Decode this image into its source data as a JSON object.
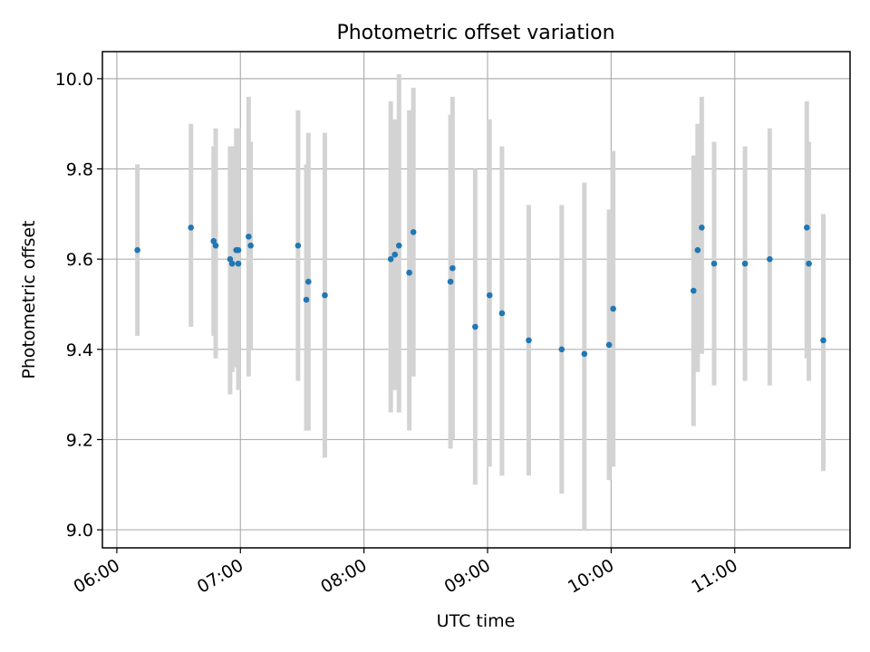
{
  "chart_data": {
    "type": "scatter",
    "title": "Photometric offset variation",
    "xlabel": "UTC time",
    "ylabel": "Photometric offset",
    "x_axis_type": "time",
    "xlim": [
      "05:53",
      "11:56"
    ],
    "ylim": [
      8.96,
      10.06
    ],
    "x_ticks": [
      "06:00",
      "07:00",
      "08:00",
      "09:00",
      "10:00",
      "11:00"
    ],
    "y_ticks": [
      9.0,
      9.2,
      9.4,
      9.6,
      9.8,
      10.0
    ],
    "y_tick_labels": [
      "9.0",
      "9.2",
      "9.4",
      "9.6",
      "9.8",
      "10.0"
    ],
    "grid": true,
    "legend": "none",
    "point_color": "#1f77b4",
    "errorbar_color": "#d3d3d3",
    "points": [
      {
        "x": "06:10",
        "y": 9.62,
        "ylow": 9.43,
        "yhigh": 9.81
      },
      {
        "x": "06:36",
        "y": 9.67,
        "ylow": 9.45,
        "yhigh": 9.9
      },
      {
        "x": "06:47",
        "y": 9.64,
        "ylow": 9.43,
        "yhigh": 9.85
      },
      {
        "x": "06:48",
        "y": 9.63,
        "ylow": 9.38,
        "yhigh": 9.89
      },
      {
        "x": "06:55",
        "y": 9.6,
        "ylow": 9.3,
        "yhigh": 9.85
      },
      {
        "x": "06:56",
        "y": 9.59,
        "ylow": 9.35,
        "yhigh": 9.85
      },
      {
        "x": "06:58",
        "y": 9.62,
        "ylow": 9.36,
        "yhigh": 9.89
      },
      {
        "x": "06:59",
        "y": 9.62,
        "ylow": 9.35,
        "yhigh": 9.89
      },
      {
        "x": "06:59",
        "y": 9.59,
        "ylow": 9.31,
        "yhigh": 9.88
      },
      {
        "x": "07:04",
        "y": 9.65,
        "ylow": 9.34,
        "yhigh": 9.96
      },
      {
        "x": "07:05",
        "y": 9.63,
        "ylow": 9.4,
        "yhigh": 9.86
      },
      {
        "x": "07:28",
        "y": 9.63,
        "ylow": 9.33,
        "yhigh": 9.93
      },
      {
        "x": "07:32",
        "y": 9.51,
        "ylow": 9.22,
        "yhigh": 9.81
      },
      {
        "x": "07:33",
        "y": 9.55,
        "ylow": 9.22,
        "yhigh": 9.88
      },
      {
        "x": "07:41",
        "y": 9.52,
        "ylow": 9.16,
        "yhigh": 9.88
      },
      {
        "x": "08:13",
        "y": 9.6,
        "ylow": 9.26,
        "yhigh": 9.95
      },
      {
        "x": "08:15",
        "y": 9.61,
        "ylow": 9.31,
        "yhigh": 9.91
      },
      {
        "x": "08:17",
        "y": 9.63,
        "ylow": 9.26,
        "yhigh": 10.01
      },
      {
        "x": "08:22",
        "y": 9.57,
        "ylow": 9.22,
        "yhigh": 9.93
      },
      {
        "x": "08:24",
        "y": 9.66,
        "ylow": 9.34,
        "yhigh": 9.98
      },
      {
        "x": "08:42",
        "y": 9.55,
        "ylow": 9.18,
        "yhigh": 9.92
      },
      {
        "x": "08:43",
        "y": 9.58,
        "ylow": 9.2,
        "yhigh": 9.96
      },
      {
        "x": "08:54",
        "y": 9.45,
        "ylow": 9.1,
        "yhigh": 9.8
      },
      {
        "x": "09:01",
        "y": 9.52,
        "ylow": 9.14,
        "yhigh": 9.91
      },
      {
        "x": "09:07",
        "y": 9.48,
        "ylow": 9.12,
        "yhigh": 9.85
      },
      {
        "x": "09:20",
        "y": 9.42,
        "ylow": 9.12,
        "yhigh": 9.72
      },
      {
        "x": "09:36",
        "y": 9.4,
        "ylow": 9.08,
        "yhigh": 9.72
      },
      {
        "x": "09:47",
        "y": 9.39,
        "ylow": 9.0,
        "yhigh": 9.77
      },
      {
        "x": "09:59",
        "y": 9.41,
        "ylow": 9.11,
        "yhigh": 9.71
      },
      {
        "x": "10:01",
        "y": 9.49,
        "ylow": 9.14,
        "yhigh": 9.84
      },
      {
        "x": "10:40",
        "y": 9.53,
        "ylow": 9.23,
        "yhigh": 9.83
      },
      {
        "x": "10:42",
        "y": 9.62,
        "ylow": 9.35,
        "yhigh": 9.9
      },
      {
        "x": "10:44",
        "y": 9.67,
        "ylow": 9.39,
        "yhigh": 9.96
      },
      {
        "x": "10:50",
        "y": 9.59,
        "ylow": 9.32,
        "yhigh": 9.86
      },
      {
        "x": "11:05",
        "y": 9.59,
        "ylow": 9.33,
        "yhigh": 9.85
      },
      {
        "x": "11:17",
        "y": 9.6,
        "ylow": 9.32,
        "yhigh": 9.89
      },
      {
        "x": "11:35",
        "y": 9.67,
        "ylow": 9.38,
        "yhigh": 9.95
      },
      {
        "x": "11:36",
        "y": 9.59,
        "ylow": 9.33,
        "yhigh": 9.86
      },
      {
        "x": "11:43",
        "y": 9.42,
        "ylow": 9.13,
        "yhigh": 9.7
      }
    ]
  }
}
